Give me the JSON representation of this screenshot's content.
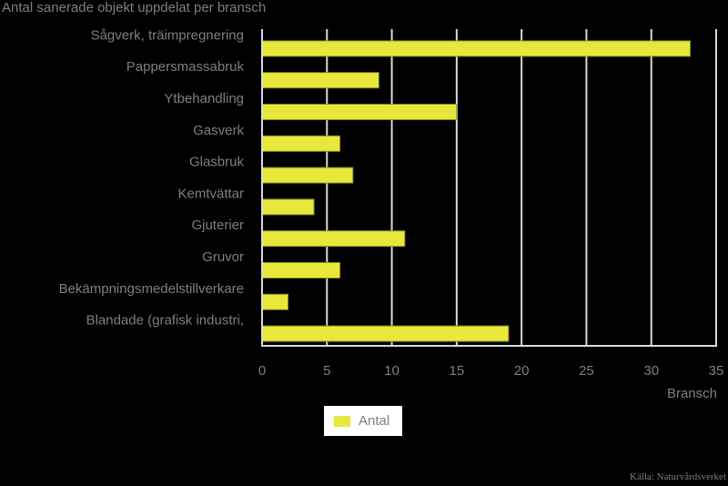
{
  "chart_data": {
    "type": "bar",
    "orientation": "horizontal",
    "title": "Antal sanerade objekt uppdelat per bransch",
    "xlabel": "Bransch",
    "ylabel": "",
    "categories": [
      "Sågverk, träimpregnering",
      "Pappersmassabruk",
      "Ytbehandling",
      "Gasverk",
      "Glasbruk",
      "Kemtvättar",
      "Gjuterier",
      "Gruvor",
      "Bekämpningsmedelstillverkare",
      "Blandade (grafisk industri,"
    ],
    "series": [
      {
        "name": "Antal",
        "values": [
          33,
          9,
          15,
          6,
          7,
          4,
          11,
          6,
          2,
          19
        ]
      }
    ],
    "xlim": [
      0,
      35
    ],
    "xticks": [
      0,
      5,
      10,
      15,
      20,
      25,
      30,
      35
    ],
    "grid": true,
    "legend_position": "bottom",
    "source": "Källa: Naturvårdsverket",
    "colors": {
      "bar": "#e8e83a",
      "bar_stroke": "#8a8a20",
      "grid": "#d9d9d9",
      "text": "#7f7f7f",
      "background": "#000000",
      "axis": "#d9d9d9"
    }
  }
}
